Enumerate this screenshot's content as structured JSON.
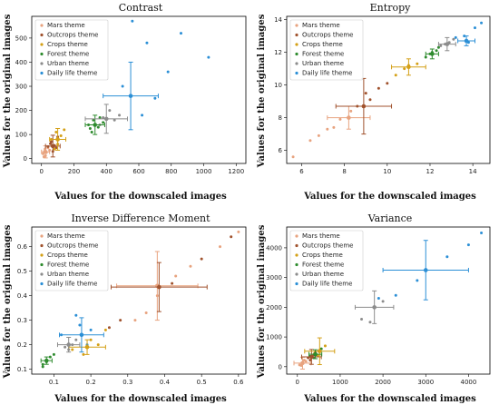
{
  "series_names": [
    "Mars theme",
    "Outcrops theme",
    "Crops theme",
    "Forest theme",
    "Urban theme",
    "Daily life theme"
  ],
  "colors": {
    "Mars theme": "#e8a37f",
    "Outcrops theme": "#a0522d",
    "Crops theme": "#d4a017",
    "Forest theme": "#2e8b2e",
    "Urban theme": "#8c8c8c",
    "Daily life theme": "#2b8fd6"
  },
  "chart_data": [
    {
      "type": "scatter",
      "title": "Contrast",
      "xlabel": "Values for the downscaled images",
      "ylabel": "Values for the original images",
      "xlim": [
        -60,
        1260
      ],
      "ylim": [
        -20,
        590
      ],
      "xticks": [
        0,
        200,
        400,
        600,
        800,
        1000,
        1200
      ],
      "yticks": [
        0,
        100,
        200,
        300,
        400,
        500
      ],
      "legend": "top-left",
      "series": [
        {
          "name": "Mars theme",
          "points": [
            [
              10,
              20
            ],
            [
              18,
              30
            ],
            [
              25,
              12
            ],
            [
              40,
              45
            ],
            [
              30,
              25
            ],
            [
              15,
              8
            ],
            [
              50,
              35
            ],
            [
              22,
              40
            ]
          ],
          "mean": [
            25,
            28
          ],
          "xerr": 25,
          "yerr": 25
        },
        {
          "name": "Outcrops theme",
          "points": [
            [
              40,
              50
            ],
            [
              60,
              70
            ],
            [
              80,
              55
            ],
            [
              70,
              30
            ],
            [
              100,
              90
            ],
            [
              90,
              45
            ],
            [
              55,
              62
            ]
          ],
          "mean": [
            70,
            52
          ],
          "xerr": 45,
          "yerr": 45
        },
        {
          "name": "Crops theme",
          "points": [
            [
              60,
              80
            ],
            [
              90,
              110
            ],
            [
              120,
              95
            ],
            [
              100,
              60
            ],
            [
              140,
              120
            ],
            [
              80,
              40
            ]
          ],
          "mean": [
            100,
            80
          ],
          "xerr": 50,
          "yerr": 45
        },
        {
          "name": "Forest theme",
          "points": [
            [
              290,
              140
            ],
            [
              320,
              160
            ],
            [
              350,
              130
            ],
            [
              380,
              150
            ],
            [
              310,
              110
            ],
            [
              360,
              170
            ],
            [
              300,
              125
            ]
          ],
          "mean": [
            330,
            140
          ],
          "xerr": 60,
          "yerr": 40
        },
        {
          "name": "Urban theme",
          "points": [
            [
              380,
              170
            ],
            [
              420,
              200
            ],
            [
              450,
              160
            ],
            [
              360,
              140
            ],
            [
              480,
              180
            ]
          ],
          "mean": [
            400,
            165
          ],
          "xerr": 130,
          "yerr": 60
        },
        {
          "name": "Daily life theme",
          "points": [
            [
              500,
              300
            ],
            [
              650,
              480
            ],
            [
              780,
              360
            ],
            [
              860,
              520
            ],
            [
              1030,
              420
            ],
            [
              620,
              180
            ],
            [
              560,
              570
            ],
            [
              700,
              250
            ]
          ],
          "mean": [
            550,
            260
          ],
          "xerr": 170,
          "yerr": 140
        }
      ]
    },
    {
      "type": "scatter",
      "title": "Entropy",
      "xlabel": "Values for the downscaled images",
      "ylabel": "Values for the original images",
      "xlim": [
        5.3,
        14.8
      ],
      "ylim": [
        5.2,
        14.2
      ],
      "xticks": [
        6,
        8,
        10,
        12,
        14
      ],
      "yticks": [
        6,
        8,
        10,
        12,
        14
      ],
      "legend": "top-left",
      "series": [
        {
          "name": "Mars theme",
          "points": [
            [
              5.6,
              5.6
            ],
            [
              6.4,
              6.6
            ],
            [
              7.2,
              7.3
            ],
            [
              7.8,
              7.9
            ],
            [
              8.3,
              8.4
            ],
            [
              6.8,
              6.9
            ],
            [
              7.5,
              7.4
            ]
          ],
          "mean": [
            8.2,
            8.0
          ],
          "xerr": 1.0,
          "yerr": 0.7
        },
        {
          "name": "Outcrops theme",
          "points": [
            [
              8.6,
              8.7
            ],
            [
              9.2,
              9.1
            ],
            [
              9.6,
              9.8
            ],
            [
              10.0,
              10.1
            ],
            [
              9.0,
              9.5
            ]
          ],
          "mean": [
            8.9,
            8.7
          ],
          "xerr": 1.3,
          "yerr": 1.7
        },
        {
          "name": "Crops theme",
          "points": [
            [
              10.4,
              10.6
            ],
            [
              11.0,
              11.2
            ],
            [
              11.4,
              11.3
            ],
            [
              10.8,
              11.0
            ]
          ],
          "mean": [
            11.0,
            11.1
          ],
          "xerr": 0.8,
          "yerr": 0.5
        },
        {
          "name": "Forest theme",
          "points": [
            [
              11.8,
              11.7
            ],
            [
              12.1,
              12.0
            ],
            [
              12.3,
              12.1
            ],
            [
              12.0,
              11.9
            ],
            [
              12.4,
              12.3
            ]
          ],
          "mean": [
            12.1,
            11.9
          ],
          "xerr": 0.3,
          "yerr": 0.3
        },
        {
          "name": "Urban theme",
          "points": [
            [
              12.5,
              12.4
            ],
            [
              12.9,
              12.6
            ],
            [
              13.1,
              12.8
            ],
            [
              12.7,
              12.5
            ]
          ],
          "mean": [
            12.8,
            12.5
          ],
          "xerr": 0.4,
          "yerr": 0.4
        },
        {
          "name": "Daily life theme",
          "points": [
            [
              13.2,
              12.9
            ],
            [
              13.6,
              13.0
            ],
            [
              14.1,
              13.5
            ],
            [
              14.4,
              13.8
            ],
            [
              13.8,
              12.6
            ]
          ],
          "mean": [
            13.7,
            12.7
          ],
          "xerr": 0.4,
          "yerr": 0.3
        }
      ]
    },
    {
      "type": "scatter",
      "title": "Inverse Difference Moment",
      "xlabel": "Values for the downscaled images",
      "ylabel": "Values for the original images",
      "xlim": [
        0.04,
        0.62
      ],
      "ylim": [
        0.08,
        0.68
      ],
      "xticks": [
        0.1,
        0.2,
        0.3,
        0.4,
        0.5,
        0.6
      ],
      "yticks": [
        0.1,
        0.2,
        0.3,
        0.4,
        0.5,
        0.6
      ],
      "legend": "top-left",
      "series": [
        {
          "name": "Mars theme",
          "points": [
            [
              0.32,
              0.3
            ],
            [
              0.38,
              0.4
            ],
            [
              0.43,
              0.48
            ],
            [
              0.47,
              0.52
            ],
            [
              0.55,
              0.6
            ],
            [
              0.6,
              0.66
            ],
            [
              0.35,
              0.33
            ]
          ],
          "mean": [
            0.38,
            0.44
          ],
          "xerr": 0.11,
          "yerr": 0.14
        },
        {
          "name": "Outcrops theme",
          "points": [
            [
              0.28,
              0.3
            ],
            [
              0.42,
              0.45
            ],
            [
              0.5,
              0.55
            ],
            [
              0.58,
              0.64
            ],
            [
              0.25,
              0.27
            ]
          ],
          "mean": [
            0.385,
            0.435
          ],
          "xerr": 0.13,
          "yerr": 0.1
        },
        {
          "name": "Crops theme",
          "points": [
            [
              0.15,
              0.18
            ],
            [
              0.2,
              0.22
            ],
            [
              0.22,
              0.2
            ],
            [
              0.18,
              0.16
            ],
            [
              0.24,
              0.26
            ]
          ],
          "mean": [
            0.19,
            0.19
          ],
          "xerr": 0.05,
          "yerr": 0.03
        },
        {
          "name": "Forest theme",
          "points": [
            [
              0.07,
              0.12
            ],
            [
              0.08,
              0.13
            ],
            [
              0.09,
              0.15
            ],
            [
              0.1,
              0.16
            ],
            [
              0.07,
              0.11
            ]
          ],
          "mean": [
            0.08,
            0.135
          ],
          "xerr": 0.015,
          "yerr": 0.015
        },
        {
          "name": "Urban theme",
          "points": [
            [
              0.13,
              0.19
            ],
            [
              0.15,
              0.2
            ],
            [
              0.16,
              0.22
            ],
            [
              0.14,
              0.18
            ]
          ],
          "mean": [
            0.14,
            0.2
          ],
          "xerr": 0.03,
          "yerr": 0.03
        },
        {
          "name": "Daily life theme",
          "points": [
            [
              0.12,
              0.24
            ],
            [
              0.17,
              0.28
            ],
            [
              0.19,
              0.2
            ],
            [
              0.16,
              0.32
            ],
            [
              0.2,
              0.26
            ]
          ],
          "mean": [
            0.175,
            0.24
          ],
          "xerr": 0.06,
          "yerr": 0.07
        }
      ]
    },
    {
      "type": "scatter",
      "title": "Variance",
      "xlabel": "Values for the downscaled images",
      "ylabel": "Values for the original images",
      "xlim": [
        -250,
        4500
      ],
      "ylim": [
        -250,
        4700
      ],
      "xticks": [
        0,
        1000,
        2000,
        3000,
        4000
      ],
      "yticks": [
        0,
        1000,
        2000,
        3000,
        4000
      ],
      "legend": "top-left",
      "series": [
        {
          "name": "Mars theme",
          "points": [
            [
              50,
              60
            ],
            [
              120,
              140
            ],
            [
              200,
              180
            ],
            [
              90,
              40
            ],
            [
              160,
              220
            ]
          ],
          "mean": [
            120,
            120
          ],
          "xerr": 200,
          "yerr": 200
        },
        {
          "name": "Outcrops theme",
          "points": [
            [
              250,
              300
            ],
            [
              380,
              400
            ],
            [
              300,
              220
            ],
            [
              420,
              480
            ]
          ],
          "mean": [
            330,
            330
          ],
          "xerr": 230,
          "yerr": 250
        },
        {
          "name": "Crops theme",
          "points": [
            [
              400,
              450
            ],
            [
              520,
              560
            ],
            [
              650,
              700
            ],
            [
              480,
              380
            ]
          ],
          "mean": [
            520,
            520
          ],
          "xerr": 350,
          "yerr": 450
        },
        {
          "name": "Forest theme",
          "points": [
            [
              300,
              350
            ],
            [
              420,
              400
            ],
            [
              500,
              520
            ],
            [
              380,
              300
            ],
            [
              560,
              600
            ]
          ],
          "mean": [
            420,
            420
          ],
          "xerr": 150,
          "yerr": 150
        },
        {
          "name": "Urban theme",
          "points": [
            [
              1500,
              1600
            ],
            [
              1800,
              2000
            ],
            [
              2000,
              2200
            ],
            [
              1700,
              1500
            ]
          ],
          "mean": [
            1800,
            2000
          ],
          "xerr": 450,
          "yerr": 550
        },
        {
          "name": "Daily life theme",
          "points": [
            [
              2300,
              2400
            ],
            [
              2800,
              2900
            ],
            [
              3500,
              3700
            ],
            [
              4000,
              4100
            ],
            [
              4300,
              4500
            ],
            [
              1900,
              2300
            ]
          ],
          "mean": [
            3000,
            3250
          ],
          "xerr": 1000,
          "yerr": 1000
        }
      ]
    }
  ]
}
